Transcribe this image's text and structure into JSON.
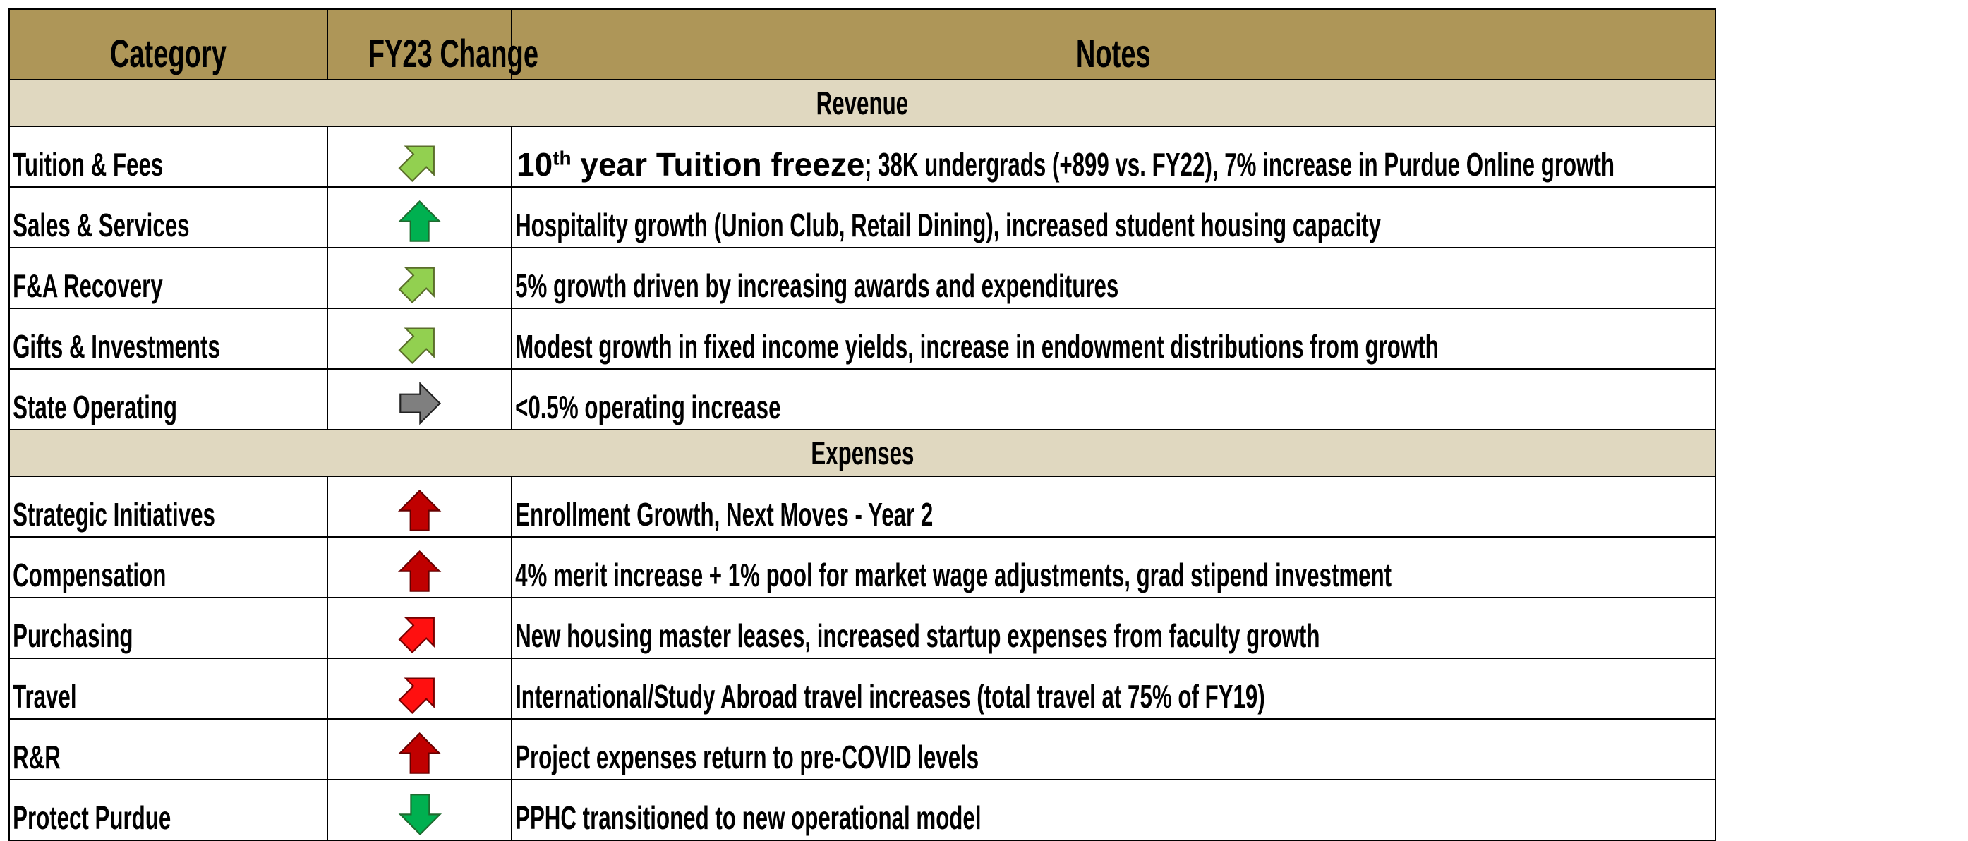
{
  "header": {
    "columns": [
      "Category",
      "FY23 Change",
      "Notes"
    ]
  },
  "sections": [
    {
      "title": "Revenue",
      "rows": [
        {
          "category": "Tuition & Fees",
          "notes": {
            "lead": "10",
            "sup": "th",
            "bold": " year Tuition freeze",
            "rest": "; 38K undergrads (+899 vs. FY22), 7% increase in Purdue Online growth"
          }
        },
        {
          "category": "Sales & Services",
          "notes": "Hospitality growth (Union Club, Retail Dining), increased student housing capacity"
        },
        {
          "category": "F&A Recovery",
          "notes": "5% growth driven by increasing awards and expenditures"
        },
        {
          "category": "Gifts & Investments",
          "notes": "Modest growth in fixed income yields, increase in endowment distributions from growth"
        },
        {
          "category": "State Operating",
          "notes": "<0.5% operating increase"
        }
      ]
    },
    {
      "title": "Expenses",
      "rows": [
        {
          "category": "Strategic Initiatives",
          "notes": "Enrollment Growth, Next Moves - Year 2"
        },
        {
          "category": "Compensation",
          "notes": "4% merit increase + 1% pool for market wage adjustments, grad stipend investment"
        },
        {
          "category": "Purchasing",
          "notes": "New housing master leases, increased startup expenses from faculty growth"
        },
        {
          "category": "Travel",
          "notes": "International/Study Abroad travel increases (total travel at 75% of FY19)"
        },
        {
          "category": "R&R",
          "notes": "Project expenses return to pre-COVID levels"
        },
        {
          "category": "Protect Purdue",
          "notes": "PPHC transitioned to new operational model"
        }
      ]
    }
  ]
}
